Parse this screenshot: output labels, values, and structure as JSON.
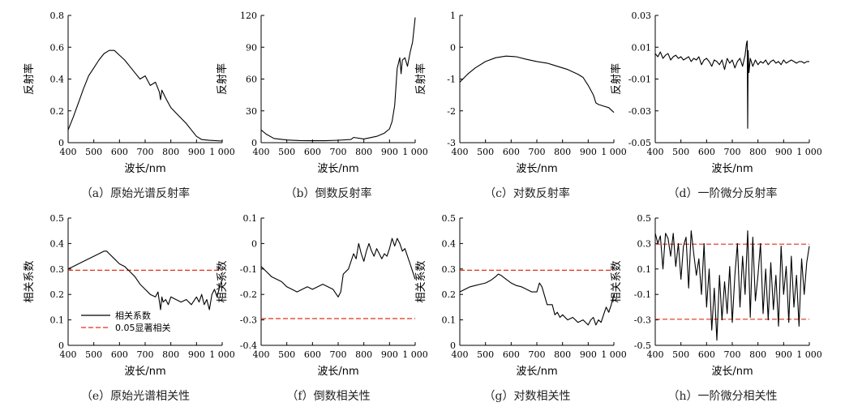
{
  "chart_data": [
    {
      "id": "a",
      "type": "line",
      "caption": "（a）原始光谱反射率",
      "xlabel": "波长/nm",
      "ylabel": "反射率",
      "xlim": [
        400,
        1000
      ],
      "ylim": [
        0,
        0.8
      ],
      "xticks": [
        "400",
        "500",
        "600",
        "700",
        "800",
        "900",
        "1 000"
      ],
      "yticks": [
        "0",
        "0.2",
        "0.4",
        "0.6",
        "0.8"
      ],
      "series": [
        {
          "color": "#000000",
          "x": [
            400,
            420,
            440,
            460,
            480,
            500,
            520,
            540,
            560,
            580,
            600,
            620,
            640,
            660,
            680,
            700,
            720,
            740,
            755,
            760,
            765,
            780,
            800,
            830,
            860,
            880,
            900,
            920,
            950,
            1000
          ],
          "y": [
            0.08,
            0.16,
            0.25,
            0.34,
            0.42,
            0.47,
            0.52,
            0.56,
            0.58,
            0.58,
            0.55,
            0.52,
            0.48,
            0.44,
            0.4,
            0.42,
            0.36,
            0.38,
            0.32,
            0.27,
            0.33,
            0.28,
            0.22,
            0.17,
            0.12,
            0.08,
            0.04,
            0.02,
            0.015,
            0.01
          ]
        }
      ]
    },
    {
      "id": "b",
      "type": "line",
      "caption": "（b）倒数反射率",
      "xlabel": "波长/nm",
      "ylabel": "反射率",
      "xlim": [
        400,
        1000
      ],
      "ylim": [
        0,
        120
      ],
      "xticks": [
        "400",
        "500",
        "600",
        "700",
        "800",
        "900",
        "1 000"
      ],
      "yticks": [
        "0",
        "30",
        "60",
        "90",
        "120"
      ],
      "series": [
        {
          "color": "#000000",
          "x": [
            400,
            420,
            450,
            500,
            550,
            600,
            650,
            700,
            750,
            760,
            800,
            850,
            880,
            900,
            910,
            920,
            930,
            940,
            945,
            950,
            960,
            970,
            980,
            990,
            1000
          ],
          "y": [
            12,
            8,
            4,
            2.5,
            2,
            1.8,
            1.8,
            2.3,
            3,
            5,
            3.5,
            6,
            9,
            13,
            20,
            35,
            70,
            80,
            65,
            78,
            80,
            72,
            85,
            95,
            118
          ]
        }
      ]
    },
    {
      "id": "c",
      "type": "line",
      "caption": "（c）对数反射率",
      "xlabel": "波长/nm",
      "ylabel": "反射率",
      "xlim": [
        400,
        1000
      ],
      "ylim": [
        -3,
        1
      ],
      "xticks": [
        "400",
        "500",
        "600",
        "700",
        "800",
        "900",
        "1 000"
      ],
      "yticks": [
        "-3",
        "-2",
        "-1",
        "0",
        "1"
      ],
      "series": [
        {
          "color": "#000000",
          "x": [
            400,
            430,
            460,
            500,
            540,
            580,
            620,
            660,
            700,
            740,
            760,
            780,
            820,
            860,
            880,
            900,
            920,
            930,
            940,
            960,
            980,
            1000
          ],
          "y": [
            -1.1,
            -0.85,
            -0.65,
            -0.45,
            -0.33,
            -0.28,
            -0.3,
            -0.38,
            -0.45,
            -0.5,
            -0.55,
            -0.6,
            -0.7,
            -0.85,
            -0.95,
            -1.2,
            -1.5,
            -1.75,
            -1.8,
            -1.85,
            -1.9,
            -2.05
          ]
        }
      ]
    },
    {
      "id": "d",
      "type": "line",
      "caption": "（d）一阶微分反射率",
      "xlabel": "波长/nm",
      "ylabel": "反射率",
      "xlim": [
        400,
        1000
      ],
      "ylim": [
        -0.05,
        0.03
      ],
      "xticks": [
        "400",
        "500",
        "600",
        "700",
        "800",
        "900",
        "1 000"
      ],
      "yticks": [
        "-0.05",
        "-0.03",
        "-0.01",
        "0.01",
        "0.03"
      ],
      "series": [
        {
          "color": "#000000",
          "x": [
            400,
            410,
            420,
            430,
            440,
            450,
            460,
            470,
            480,
            490,
            500,
            510,
            520,
            530,
            540,
            550,
            560,
            570,
            580,
            590,
            600,
            610,
            620,
            630,
            640,
            650,
            660,
            670,
            680,
            690,
            700,
            710,
            720,
            730,
            740,
            750,
            755,
            758,
            760,
            762,
            765,
            770,
            780,
            790,
            800,
            810,
            820,
            830,
            840,
            850,
            860,
            870,
            880,
            890,
            900,
            910,
            920,
            930,
            940,
            950,
            960,
            970,
            980,
            990,
            1000
          ],
          "y": [
            0.006,
            0.004,
            0.007,
            0.003,
            0.005,
            0.006,
            0.002,
            0.004,
            0.005,
            0.003,
            0.004,
            0.002,
            0.003,
            0.004,
            0.001,
            0.003,
            0.002,
            0.004,
            -0.001,
            0.002,
            0.003,
            0.001,
            -0.002,
            0.002,
            0.001,
            -0.001,
            0.002,
            -0.004,
            0.003,
            0.0,
            0.002,
            -0.003,
            0.001,
            0.003,
            -0.002,
            0.005,
            0.012,
            0.014,
            -0.041,
            0.008,
            -0.006,
            0.003,
            -0.002,
            0.002,
            -0.001,
            0.001,
            0.0,
            0.002,
            -0.001,
            0.001,
            0.002,
            0.0,
            0.001,
            -0.001,
            0.002,
            0.0,
            0.001,
            0.002,
            0.001,
            0.0,
            0.001,
            0.001,
            0.0,
            0.001,
            0.001
          ]
        }
      ]
    },
    {
      "id": "e",
      "type": "line",
      "caption": "（e）原始光谱相关性",
      "xlabel": "波长/nm",
      "ylabel": "相关系数",
      "xlim": [
        400,
        1000
      ],
      "ylim": [
        0,
        0.5
      ],
      "xticks": [
        "400",
        "500",
        "600",
        "700",
        "800",
        "900",
        "1 000"
      ],
      "yticks": [
        "0",
        "0.1",
        "0.2",
        "0.3",
        "0.4",
        "0.5"
      ],
      "threshold": [
        0.295
      ],
      "legend": {
        "position": "bottom-left",
        "items": [
          "相关系数",
          "0.05显著相关"
        ]
      },
      "series": [
        {
          "color": "#000000",
          "x": [
            400,
            420,
            440,
            460,
            480,
            500,
            520,
            540,
            550,
            560,
            580,
            600,
            620,
            640,
            660,
            680,
            700,
            720,
            740,
            750,
            760,
            765,
            770,
            780,
            790,
            800,
            820,
            840,
            860,
            880,
            900,
            910,
            920,
            930,
            940,
            950,
            960,
            970,
            980,
            990,
            1000
          ],
          "y": [
            0.3,
            0.31,
            0.32,
            0.33,
            0.34,
            0.35,
            0.36,
            0.37,
            0.37,
            0.36,
            0.34,
            0.32,
            0.31,
            0.29,
            0.27,
            0.24,
            0.22,
            0.2,
            0.19,
            0.21,
            0.14,
            0.19,
            0.17,
            0.18,
            0.16,
            0.19,
            0.18,
            0.17,
            0.18,
            0.16,
            0.19,
            0.17,
            0.2,
            0.16,
            0.18,
            0.14,
            0.2,
            0.22,
            0.19,
            0.23,
            0.26
          ]
        }
      ]
    },
    {
      "id": "f",
      "type": "line",
      "caption": "（f）倒数相关性",
      "xlabel": "波长/nm",
      "ylabel": "相关系数",
      "xlim": [
        400,
        1000
      ],
      "ylim": [
        -0.4,
        0.1
      ],
      "xticks": [
        "400",
        "500",
        "600",
        "700",
        "800",
        "900",
        "1 000"
      ],
      "yticks": [
        "-0.4",
        "-0.3",
        "-0.2",
        "-0.1",
        "0",
        "0.1"
      ],
      "threshold": [
        -0.295
      ],
      "series": [
        {
          "color": "#000000",
          "x": [
            400,
            420,
            440,
            460,
            480,
            500,
            520,
            540,
            560,
            580,
            600,
            620,
            640,
            660,
            680,
            700,
            710,
            720,
            740,
            760,
            770,
            780,
            790,
            800,
            810,
            820,
            830,
            840,
            850,
            860,
            870,
            880,
            890,
            900,
            910,
            920,
            930,
            940,
            950,
            960,
            970,
            980,
            990,
            1000
          ],
          "y": [
            -0.09,
            -0.11,
            -0.13,
            -0.14,
            -0.15,
            -0.17,
            -0.18,
            -0.19,
            -0.18,
            -0.17,
            -0.18,
            -0.17,
            -0.16,
            -0.17,
            -0.18,
            -0.21,
            -0.19,
            -0.12,
            -0.1,
            -0.04,
            -0.06,
            0.0,
            -0.04,
            -0.07,
            -0.03,
            0.0,
            -0.03,
            -0.05,
            -0.02,
            -0.04,
            -0.06,
            -0.04,
            -0.05,
            -0.02,
            0.02,
            -0.01,
            0.02,
            0.0,
            -0.03,
            -0.02,
            -0.05,
            -0.08,
            -0.11,
            -0.14
          ]
        }
      ]
    },
    {
      "id": "g",
      "type": "line",
      "caption": "（g）对数相关性",
      "xlabel": "波长/nm",
      "ylabel": "相关系数",
      "xlim": [
        400,
        1000
      ],
      "ylim": [
        0,
        0.5
      ],
      "xticks": [
        "400",
        "500",
        "600",
        "700",
        "800",
        "900",
        "1 000"
      ],
      "yticks": [
        "0",
        "0.1",
        "0.2",
        "0.3",
        "0.4",
        "0.5"
      ],
      "threshold": [
        0.295
      ],
      "series": [
        {
          "color": "#000000",
          "x": [
            400,
            420,
            440,
            460,
            480,
            500,
            520,
            540,
            550,
            560,
            580,
            600,
            620,
            640,
            660,
            680,
            700,
            710,
            720,
            740,
            760,
            770,
            780,
            790,
            800,
            820,
            840,
            860,
            880,
            900,
            910,
            920,
            930,
            940,
            950,
            960,
            970,
            980,
            990,
            1000
          ],
          "y": [
            0.21,
            0.22,
            0.23,
            0.235,
            0.24,
            0.245,
            0.255,
            0.27,
            0.28,
            0.275,
            0.26,
            0.245,
            0.235,
            0.23,
            0.22,
            0.21,
            0.21,
            0.245,
            0.23,
            0.16,
            0.16,
            0.12,
            0.13,
            0.11,
            0.12,
            0.1,
            0.11,
            0.09,
            0.1,
            0.08,
            0.1,
            0.11,
            0.08,
            0.1,
            0.09,
            0.12,
            0.15,
            0.13,
            0.16,
            0.2
          ]
        }
      ]
    },
    {
      "id": "h",
      "type": "line",
      "caption": "（h）一阶微分相关性",
      "xlabel": "波长/nm",
      "ylabel": "相关系数",
      "xlim": [
        400,
        1000
      ],
      "ylim": [
        -0.5,
        0.5
      ],
      "xticks": [
        "400",
        "500",
        "600",
        "700",
        "800",
        "900",
        "1 000"
      ],
      "yticks": [
        "-0.5",
        "-0.3",
        "-0.1",
        "0.1",
        "0.3",
        "0.5"
      ],
      "threshold": [
        0.295,
        -0.295
      ],
      "series": [
        {
          "color": "#000000",
          "x": [
            400,
            410,
            420,
            430,
            440,
            450,
            460,
            470,
            480,
            490,
            500,
            510,
            520,
            530,
            540,
            550,
            560,
            570,
            580,
            590,
            600,
            610,
            620,
            630,
            640,
            650,
            660,
            670,
            680,
            690,
            700,
            710,
            720,
            730,
            740,
            750,
            760,
            770,
            780,
            790,
            800,
            810,
            820,
            830,
            840,
            850,
            860,
            870,
            880,
            890,
            900,
            910,
            920,
            930,
            940,
            950,
            960,
            970,
            980,
            990,
            1000
          ],
          "y": [
            0.38,
            0.3,
            0.36,
            0.1,
            0.38,
            0.34,
            0.2,
            0.38,
            0.12,
            0.3,
            0.02,
            0.28,
            0.35,
            -0.05,
            0.4,
            0.22,
            0.05,
            0.18,
            -0.1,
            0.3,
            -0.2,
            0.1,
            -0.38,
            -0.05,
            -0.46,
            0.05,
            -0.3,
            0.0,
            -0.25,
            0.12,
            -0.32,
            0.05,
            0.3,
            -0.2,
            0.2,
            -0.1,
            0.4,
            -0.28,
            0.35,
            -0.15,
            0.05,
            0.3,
            -0.25,
            0.1,
            -0.3,
            0.15,
            -0.22,
            0.05,
            -0.35,
            0.28,
            -0.1,
            0.12,
            -0.32,
            0.2,
            -0.2,
            0.05,
            -0.35,
            0.18,
            -0.1,
            0.15,
            0.28
          ]
        }
      ]
    }
  ]
}
